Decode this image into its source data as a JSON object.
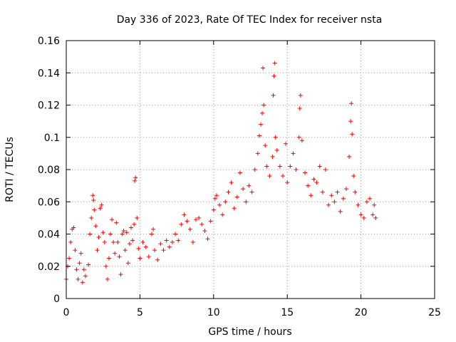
{
  "chart_data": {
    "type": "scatter",
    "title": "Day 336 of 2023, Rate Of TEC Index for receiver nsta",
    "xlabel": "GPS time / hours",
    "ylabel": "ROTI / TECUs",
    "xlim": [
      0,
      25
    ],
    "ylim": [
      0,
      0.16
    ],
    "x_ticks": [
      "0",
      "5",
      "10",
      "15",
      "20",
      "25"
    ],
    "y_ticks": [
      "0",
      "0.02",
      "0.04",
      "0.06",
      "0.08",
      "0.1",
      "0.12",
      "0.14",
      "0.16"
    ],
    "grid": true,
    "marker": "plus",
    "color": "#ff0000",
    "series": [
      {
        "points": [
          [
            0.0,
            0.012
          ],
          [
            0.1,
            0.02
          ],
          [
            0.2,
            0.025
          ],
          [
            0.3,
            0.035
          ],
          [
            0.4,
            0.043
          ],
          [
            0.5,
            0.044
          ],
          [
            0.6,
            0.03
          ],
          [
            0.7,
            0.018
          ],
          [
            0.8,
            0.012
          ],
          [
            0.9,
            0.022
          ],
          [
            1.0,
            0.028
          ],
          [
            1.1,
            0.01
          ],
          [
            1.2,
            0.018
          ],
          [
            1.3,
            0.014
          ],
          [
            1.5,
            0.021
          ],
          [
            1.6,
            0.04
          ],
          [
            1.7,
            0.05
          ],
          [
            1.8,
            0.064
          ],
          [
            1.85,
            0.061
          ],
          [
            1.9,
            0.055
          ],
          [
            2.0,
            0.045
          ],
          [
            2.1,
            0.03
          ],
          [
            2.2,
            0.038
          ],
          [
            2.3,
            0.056
          ],
          [
            2.4,
            0.058
          ],
          [
            2.5,
            0.041
          ],
          [
            2.6,
            0.035
          ],
          [
            2.7,
            0.02
          ],
          [
            2.8,
            0.012
          ],
          [
            2.9,
            0.025
          ],
          [
            3.0,
            0.04
          ],
          [
            3.1,
            0.049
          ],
          [
            3.2,
            0.035
          ],
          [
            3.3,
            0.028
          ],
          [
            3.4,
            0.047
          ],
          [
            3.5,
            0.035
          ],
          [
            3.6,
            0.026
          ],
          [
            3.7,
            0.015
          ],
          [
            3.8,
            0.04
          ],
          [
            3.9,
            0.042
          ],
          [
            4.0,
            0.03
          ],
          [
            4.1,
            0.041
          ],
          [
            4.2,
            0.022
          ],
          [
            4.3,
            0.034
          ],
          [
            4.4,
            0.044
          ],
          [
            4.5,
            0.036
          ],
          [
            4.6,
            0.046
          ],
          [
            4.65,
            0.073
          ],
          [
            4.7,
            0.075
          ],
          [
            4.8,
            0.05
          ],
          [
            4.9,
            0.031
          ],
          [
            5.0,
            0.025
          ],
          [
            5.2,
            0.035
          ],
          [
            5.4,
            0.032
          ],
          [
            5.6,
            0.026
          ],
          [
            5.8,
            0.04
          ],
          [
            5.9,
            0.043
          ],
          [
            6.0,
            0.03
          ],
          [
            6.2,
            0.024
          ],
          [
            6.4,
            0.034
          ],
          [
            6.6,
            0.03
          ],
          [
            6.8,
            0.036
          ],
          [
            7.0,
            0.032
          ],
          [
            7.2,
            0.035
          ],
          [
            7.4,
            0.04
          ],
          [
            7.6,
            0.036
          ],
          [
            7.8,
            0.046
          ],
          [
            8.0,
            0.052
          ],
          [
            8.2,
            0.048
          ],
          [
            8.4,
            0.043
          ],
          [
            8.6,
            0.035
          ],
          [
            8.8,
            0.049
          ],
          [
            9.0,
            0.05
          ],
          [
            9.2,
            0.046
          ],
          [
            9.4,
            0.042
          ],
          [
            9.6,
            0.037
          ],
          [
            9.8,
            0.048
          ],
          [
            10.0,
            0.055
          ],
          [
            10.1,
            0.062
          ],
          [
            10.2,
            0.064
          ],
          [
            10.4,
            0.058
          ],
          [
            10.6,
            0.052
          ],
          [
            10.8,
            0.06
          ],
          [
            11.0,
            0.066
          ],
          [
            11.2,
            0.072
          ],
          [
            11.4,
            0.056
          ],
          [
            11.6,
            0.063
          ],
          [
            11.8,
            0.078
          ],
          [
            12.0,
            0.068
          ],
          [
            12.2,
            0.06
          ],
          [
            12.4,
            0.07
          ],
          [
            12.6,
            0.066
          ],
          [
            12.8,
            0.08
          ],
          [
            13.0,
            0.09
          ],
          [
            13.1,
            0.101
          ],
          [
            13.2,
            0.108
          ],
          [
            13.3,
            0.115
          ],
          [
            13.35,
            0.143
          ],
          [
            13.4,
            0.12
          ],
          [
            13.5,
            0.095
          ],
          [
            13.6,
            0.082
          ],
          [
            13.8,
            0.076
          ],
          [
            14.0,
            0.088
          ],
          [
            14.05,
            0.126
          ],
          [
            14.1,
            0.138
          ],
          [
            14.15,
            0.146
          ],
          [
            14.2,
            0.1
          ],
          [
            14.3,
            0.092
          ],
          [
            14.5,
            0.082
          ],
          [
            14.7,
            0.076
          ],
          [
            14.9,
            0.096
          ],
          [
            15.0,
            0.072
          ],
          [
            15.2,
            0.082
          ],
          [
            15.4,
            0.09
          ],
          [
            15.6,
            0.08
          ],
          [
            15.8,
            0.1
          ],
          [
            15.85,
            0.118
          ],
          [
            15.9,
            0.126
          ],
          [
            16.0,
            0.098
          ],
          [
            16.2,
            0.078
          ],
          [
            16.4,
            0.07
          ],
          [
            16.6,
            0.064
          ],
          [
            16.8,
            0.074
          ],
          [
            17.0,
            0.072
          ],
          [
            17.2,
            0.082
          ],
          [
            17.4,
            0.066
          ],
          [
            17.6,
            0.08
          ],
          [
            17.8,
            0.058
          ],
          [
            18.0,
            0.064
          ],
          [
            18.2,
            0.06
          ],
          [
            18.4,
            0.066
          ],
          [
            18.6,
            0.054
          ],
          [
            18.8,
            0.062
          ],
          [
            19.0,
            0.068
          ],
          [
            19.2,
            0.088
          ],
          [
            19.3,
            0.11
          ],
          [
            19.35,
            0.121
          ],
          [
            19.4,
            0.102
          ],
          [
            19.5,
            0.076
          ],
          [
            19.6,
            0.066
          ],
          [
            19.8,
            0.058
          ],
          [
            20.0,
            0.052
          ],
          [
            20.2,
            0.05
          ],
          [
            20.4,
            0.06
          ],
          [
            20.6,
            0.062
          ],
          [
            20.8,
            0.052
          ],
          [
            20.9,
            0.058
          ],
          [
            21.0,
            0.05
          ]
        ]
      }
    ]
  }
}
